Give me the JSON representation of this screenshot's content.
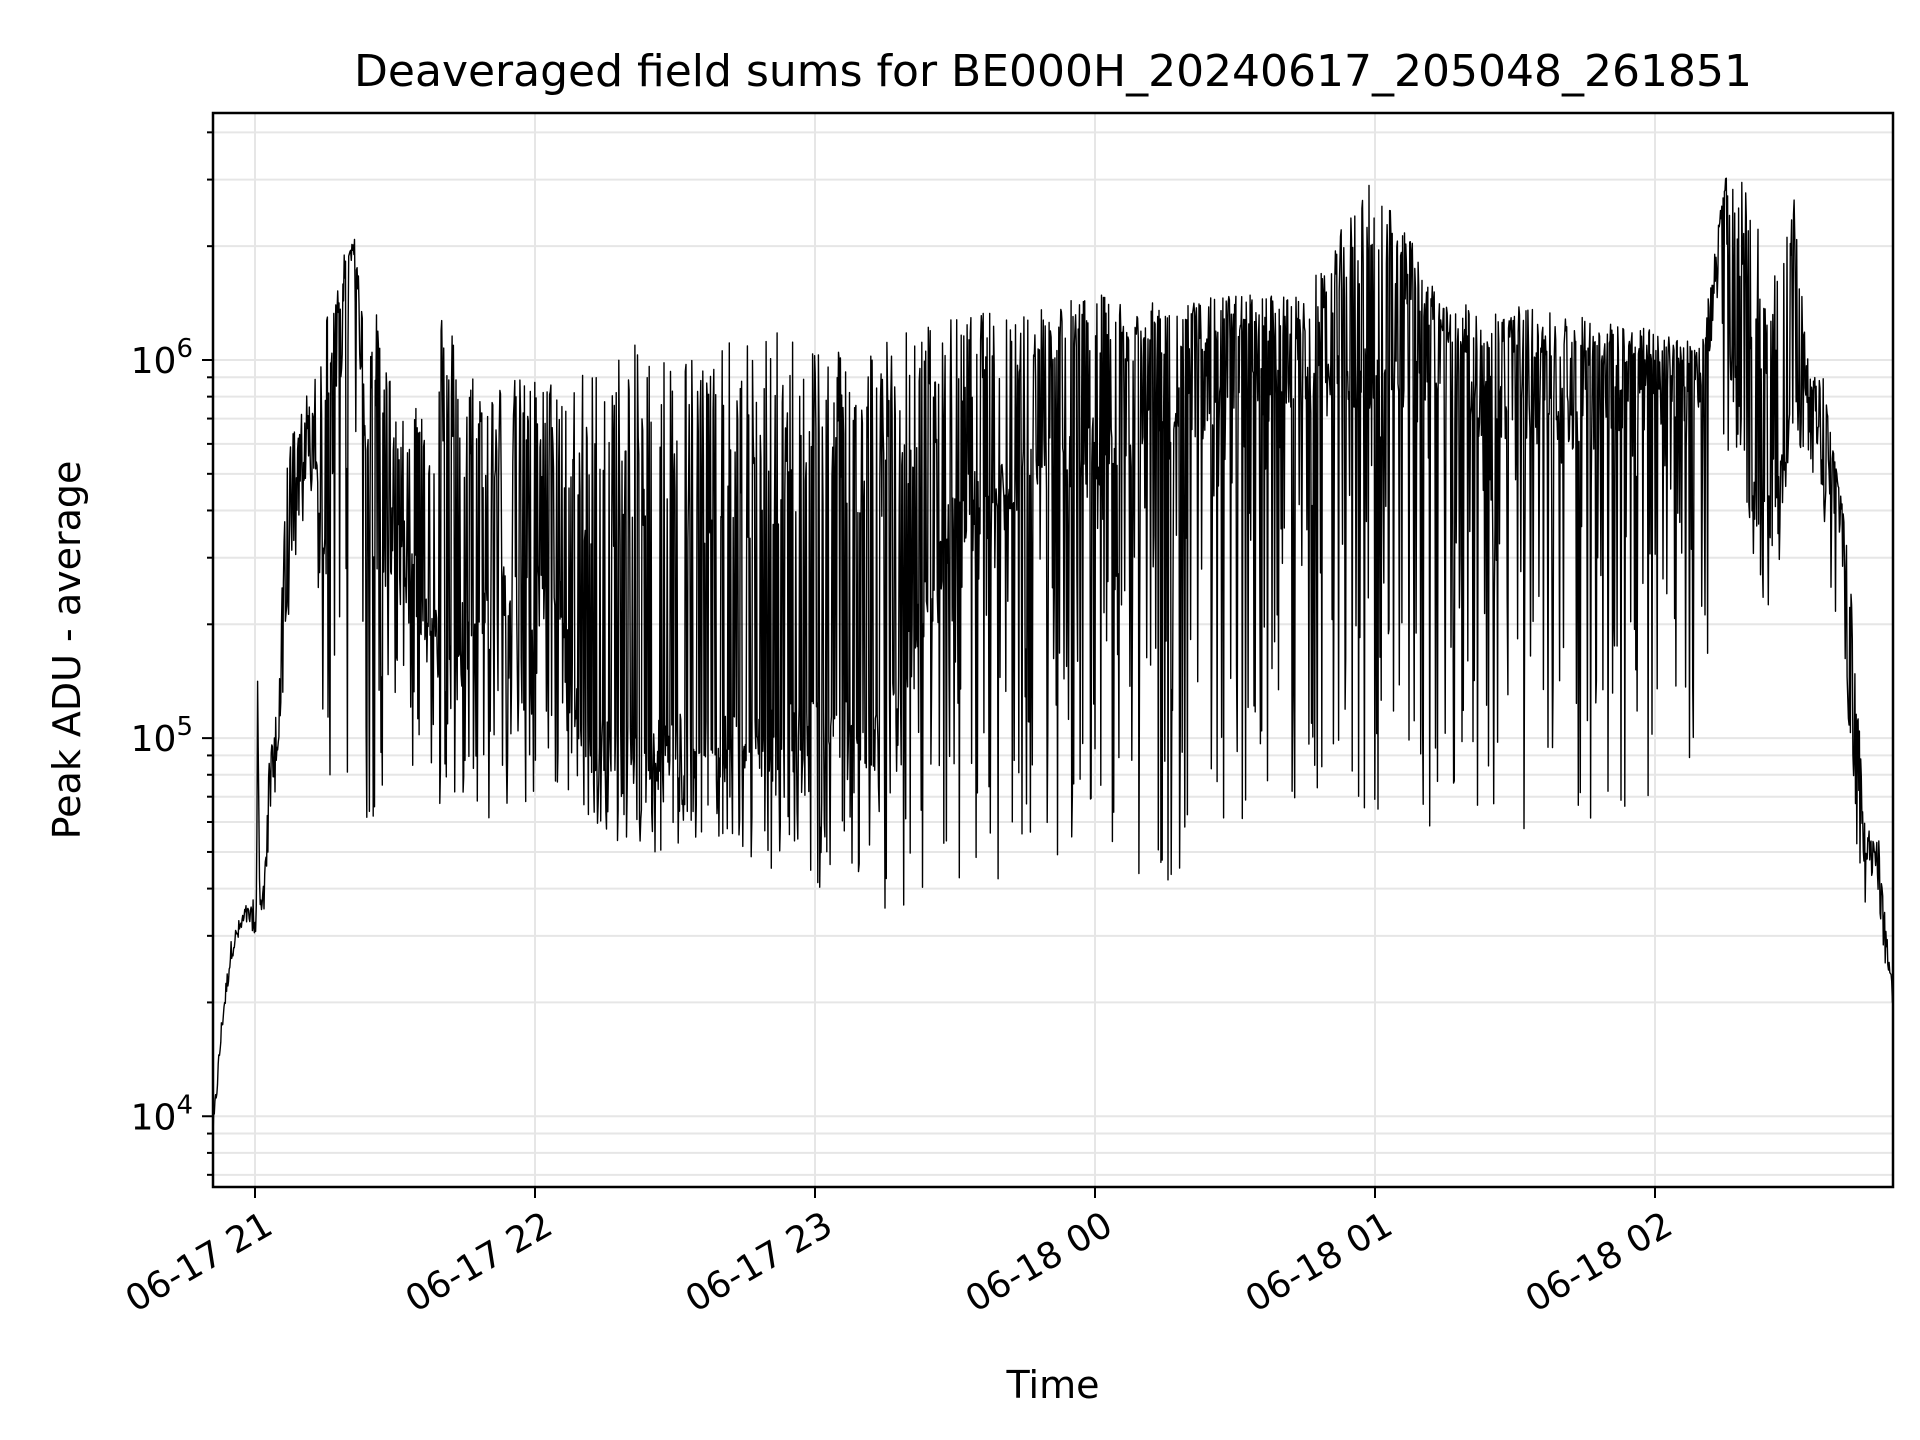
{
  "chart_data": {
    "type": "line",
    "title": "Deaveraged field sums for BE000H_20240617_205048_261851",
    "xlabel": "Time",
    "ylabel": "Peak ADU - average",
    "yscale": "log",
    "ylim": [
      6500,
      4500000
    ],
    "xlim": [
      "2024-06-17T20:51:00",
      "2024-06-18T02:51:00"
    ],
    "grid": true,
    "line_color": "#000000",
    "x_ticks": [
      {
        "t": "2024-06-17T21:00:00",
        "label": "06-17 21"
      },
      {
        "t": "2024-06-17T22:00:00",
        "label": "06-17 22"
      },
      {
        "t": "2024-06-17T23:00:00",
        "label": "06-17 23"
      },
      {
        "t": "2024-06-18T00:00:00",
        "label": "06-18 00"
      },
      {
        "t": "2024-06-18T01:00:00",
        "label": "06-18 01"
      },
      {
        "t": "2024-06-18T02:00:00",
        "label": "06-18 02"
      }
    ],
    "y_ticks": [
      {
        "value": 10000,
        "base": "10",
        "exp": "4"
      },
      {
        "value": 100000,
        "base": "10",
        "exp": "5"
      },
      {
        "value": 1000000,
        "base": "10",
        "exp": "6"
      }
    ],
    "series": [
      {
        "x": [
          "2024-06-17T20:51:00",
          "2024-06-17T20:53:00",
          "2024-06-17T20:55:00",
          "2024-06-17T20:58:00",
          "2024-06-17T21:00:00",
          "2024-06-17T21:00:30",
          "2024-06-17T21:01:00",
          "2024-06-17T21:02:00",
          "2024-06-17T21:03:00",
          "2024-06-17T21:05:00",
          "2024-06-17T21:07:00",
          "2024-06-17T21:09:00",
          "2024-06-17T21:11:00",
          "2024-06-17T21:13:00",
          "2024-06-17T21:15:00",
          "2024-06-17T21:17:00",
          "2024-06-17T21:19:00",
          "2024-06-17T21:21:00",
          "2024-06-17T21:23:00",
          "2024-06-17T21:25:00",
          "2024-06-17T21:27:00",
          "2024-06-17T21:30:00",
          "2024-06-17T21:33:00",
          "2024-06-17T21:36:00",
          "2024-06-17T21:40:00",
          "2024-06-17T21:45:00",
          "2024-06-17T21:50:00",
          "2024-06-17T21:55:00",
          "2024-06-17T22:00:00",
          "2024-06-17T22:05:00",
          "2024-06-17T22:10:00",
          "2024-06-17T22:20:00",
          "2024-06-17T22:30:00",
          "2024-06-17T22:40:00",
          "2024-06-17T22:50:00",
          "2024-06-17T23:00:00",
          "2024-06-17T23:15:00",
          "2024-06-17T23:30:00",
          "2024-06-17T23:45:00",
          "2024-06-18T00:00:00",
          "2024-06-18T00:15:00",
          "2024-06-18T00:30:00",
          "2024-06-18T00:45:00",
          "2024-06-18T01:00:00",
          "2024-06-18T01:15:00",
          "2024-06-18T01:30:00",
          "2024-06-18T01:45:00",
          "2024-06-18T02:00:00",
          "2024-06-18T02:10:00",
          "2024-06-18T02:15:00",
          "2024-06-18T02:20:00",
          "2024-06-18T02:25:00",
          "2024-06-18T02:30:00",
          "2024-06-18T02:33:00",
          "2024-06-18T02:36:00",
          "2024-06-18T02:39:00",
          "2024-06-18T02:42:00",
          "2024-06-18T02:45:00",
          "2024-06-18T02:48:00",
          "2024-06-18T02:51:00"
        ],
        "values": [
          9000,
          18000,
          28000,
          34000,
          33000,
          165000,
          35000,
          38000,
          60000,
          110000,
          250000,
          450000,
          600000,
          500000,
          300000,
          700000,
          1300000,
          2000000,
          900000,
          400000,
          300000,
          350000,
          300000,
          220000,
          180000,
          200000,
          220000,
          250000,
          280000,
          240000,
          100000,
          90000,
          100000,
          95000,
          100000,
          110000,
          100000,
          400000,
          500000,
          600000,
          700000,
          800000,
          850000,
          900000,
          800000,
          750000,
          700000,
          800000,
          900000,
          2500000,
          400000,
          450000,
          700000,
          800000,
          700000,
          500000,
          100000,
          50000,
          45000,
          20000
        ],
        "spike_max": [
          9000,
          18000,
          28000,
          34000,
          40000,
          165000,
          40000,
          45000,
          85000,
          140000,
          600000,
          700000,
          800000,
          900000,
          1400000,
          1500000,
          1900000,
          2050000,
          1500000,
          1500000,
          1200000,
          800000,
          800000,
          900000,
          1500000,
          1000000,
          900000,
          900000,
          900000,
          900000,
          950000,
          1100000,
          1100000,
          1100000,
          1200000,
          1200000,
          1200000,
          1300000,
          1400000,
          1500000,
          1400000,
          1500000,
          1500000,
          3200000,
          1400000,
          1400000,
          1300000,
          1200000,
          1100000,
          3100000,
          2900000,
          1600000,
          2700000,
          950000,
          900000,
          500000,
          300000,
          60000,
          50000,
          20000
        ],
        "spike_min": [
          9000,
          18000,
          28000,
          34000,
          28000,
          30000,
          32000,
          34000,
          60000,
          90000,
          200000,
          300000,
          400000,
          350000,
          80000,
          60000,
          70000,
          80000,
          55000,
          60000,
          70000,
          100000,
          70000,
          60000,
          65000,
          70000,
          60000,
          60000,
          65000,
          70000,
          65000,
          50000,
          50000,
          55000,
          45000,
          40000,
          35000,
          38000,
          45000,
          50000,
          40000,
          60000,
          65000,
          60000,
          58000,
          55000,
          60000,
          65000,
          80000,
          300000,
          250000,
          200000,
          600000,
          550000,
          400000,
          100000,
          60000,
          35000,
          30000,
          20000
        ]
      }
    ]
  }
}
